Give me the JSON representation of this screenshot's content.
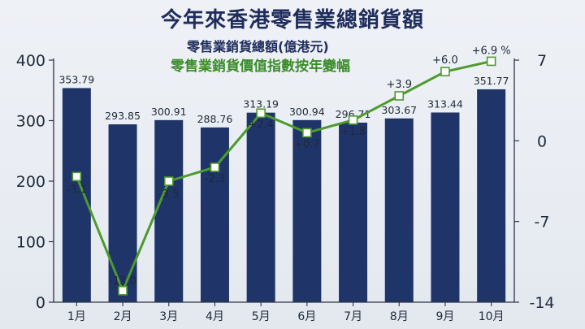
{
  "header": {
    "title": "今年來香港零售業總銷貨額",
    "subtitle_bar": "零售業銷貨總額(億港元)",
    "subtitle_line": "零售業銷貨價值指數按年變幅"
  },
  "chart_data": {
    "type": "bar",
    "categories": [
      "1月",
      "2月",
      "3月",
      "4月",
      "5月",
      "6月",
      "7月",
      "8月",
      "9月",
      "10月"
    ],
    "series": [
      {
        "name": "零售業銷貨總額(億港元)",
        "type": "bar",
        "axis": "left",
        "values": [
          353.79,
          293.85,
          300.91,
          288.76,
          313.19,
          300.94,
          296.71,
          303.67,
          313.44,
          351.77
        ],
        "labels": [
          "353.79",
          "293.85",
          "300.91",
          "288.76",
          "313.19",
          "300.94",
          "296.71",
          "303.67",
          "313.44",
          "351.77"
        ]
      },
      {
        "name": "零售業銷貨價值指數按年變幅",
        "type": "line",
        "axis": "right",
        "values": [
          -3.1,
          -13.0,
          -3.5,
          -2.3,
          2.4,
          0.7,
          1.8,
          3.9,
          6.0,
          6.9
        ],
        "labels": [
          "-3.1",
          "-13.0",
          "-3.5",
          "-2.3",
          "+2.4",
          "+0.7",
          "+1.8",
          "+3.9",
          "+6.0",
          "+6.9 %"
        ]
      }
    ],
    "y_left": {
      "min": 0,
      "max": 400,
      "ticks": [
        "0",
        "100",
        "200",
        "300",
        "400"
      ]
    },
    "y_right": {
      "min": -14,
      "max": 7,
      "ticks": [
        "-14",
        "-7",
        "0",
        "7"
      ]
    },
    "grid": false,
    "colors": {
      "bar": "#1f3468",
      "line": "#4d9a2e",
      "marker_fill": "#ffffff",
      "title": "#1f2d5c",
      "line_text": "#3a8d2a"
    }
  }
}
